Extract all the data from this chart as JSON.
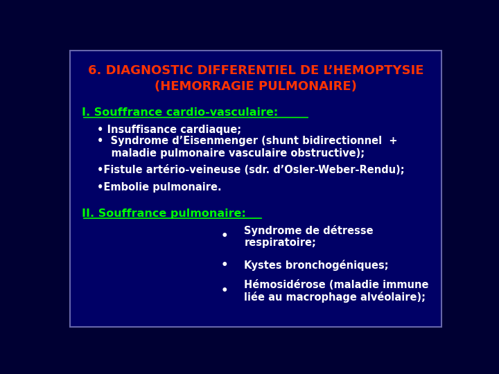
{
  "bg_color": "#000033",
  "slide_bg": "#000066",
  "border_color": "#6666aa",
  "title_line1": "6. DIAGNOSTIC DIFFERENTIEL DE L’HEMOPTYSIE",
  "title_line2": "(HEMORRAGIE PULMONAIRE)",
  "title_color": "#ff3300",
  "section1_color": "#00ff00",
  "section1_text": "I. Souffrance cardio-vasculaire:",
  "section2_color": "#00ff00",
  "section2_text": "II. Souffrance pulmonaire:",
  "white_color": "#ffffff",
  "bullet_items_s1": [
    "• Insuffisance cardiaque;",
    "•  Syndrome d’Eisenmenger (shunt bidirectionnel  +\n    maladie pulmonaire vasculaire obstructive);",
    "•Fistule artério-veineuse (sdr. d’Osler-Weber-Rendu);",
    "•Embolie pulmonaire."
  ],
  "bullet_items_s2_texts": [
    "Syndrome de détresse\nrespiratoire;",
    "Kystes bronchogéniques;",
    "Hémosidérose (maladie immune\nliée au macrophage alvéolaire);"
  ],
  "title_fontsize": 13,
  "section_fontsize": 11.5,
  "body_fontsize": 10.5
}
